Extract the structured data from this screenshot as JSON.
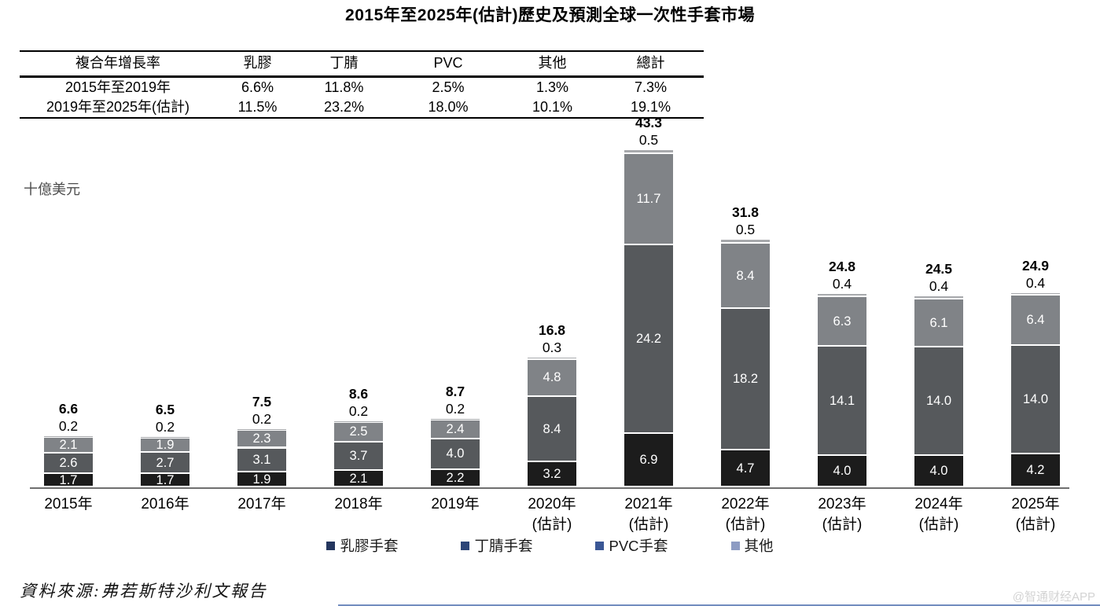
{
  "title": "2015年至2025年(估計)歷史及預測全球一次性手套市場",
  "unit_label": "十億美元",
  "cagr_table": {
    "headers": [
      "複合年增長率",
      "乳膠",
      "丁腈",
      "PVC",
      "其他",
      "總計"
    ],
    "rows": [
      {
        "label": "2015年至2019年",
        "values": [
          "6.6%",
          "11.8%",
          "2.5%",
          "1.3%",
          "7.3%"
        ]
      },
      {
        "label": "2019年至2025年(估計)",
        "values": [
          "11.5%",
          "23.2%",
          "18.0%",
          "10.1%",
          "19.1%"
        ]
      }
    ]
  },
  "chart_data": {
    "type": "bar",
    "stacked": true,
    "title": "2015年至2025年(估計)歷史及預測全球一次性手套市場",
    "ylabel": "十億美元",
    "grid": false,
    "legend_position": "bottom",
    "categories": [
      "2015年",
      "2016年",
      "2017年",
      "2018年",
      "2019年",
      "2020年(估計)",
      "2021年(估計)",
      "2022年(估計)",
      "2023年(估計)",
      "2024年(估計)",
      "2025年(估計)"
    ],
    "category_lines": [
      [
        "2015年"
      ],
      [
        "2016年"
      ],
      [
        "2017年"
      ],
      [
        "2018年"
      ],
      [
        "2019年"
      ],
      [
        "2020年",
        "(估計)"
      ],
      [
        "2021年",
        "(估計)"
      ],
      [
        "2022年",
        "(估計)"
      ],
      [
        "2023年",
        "(估計)"
      ],
      [
        "2024年",
        "(估計)"
      ],
      [
        "2025年",
        "(估計)"
      ]
    ],
    "series": [
      {
        "name": "乳膠手套",
        "bar_color": "#1c1c1c",
        "legend_color": "#24365e",
        "values": [
          1.7,
          1.7,
          1.9,
          2.1,
          2.2,
          3.2,
          6.9,
          4.7,
          4.0,
          4.0,
          4.2
        ]
      },
      {
        "name": "丁腈手套",
        "bar_color": "#56595c",
        "legend_color": "#2d4678",
        "values": [
          2.6,
          2.7,
          3.1,
          3.7,
          4.0,
          8.4,
          24.2,
          18.2,
          14.1,
          14.0,
          14.0
        ]
      },
      {
        "name": "PVC手套",
        "bar_color": "#808387",
        "legend_color": "#3a5795",
        "values": [
          2.1,
          1.9,
          2.3,
          2.5,
          2.4,
          4.8,
          11.7,
          8.4,
          6.3,
          6.1,
          6.4
        ]
      },
      {
        "name": "其他",
        "bar_color": "#a7a9ac",
        "legend_color": "#8d9cc3",
        "values": [
          0.2,
          0.2,
          0.2,
          0.2,
          0.2,
          0.3,
          0.5,
          0.5,
          0.4,
          0.4,
          0.4
        ]
      }
    ],
    "totals": [
      "6.6",
      "6.5",
      "7.5",
      "8.6",
      "8.7",
      "16.8",
      "43.3",
      "31.8",
      "24.8",
      "24.5",
      "24.9"
    ]
  },
  "source": "資料來源:弗若斯特沙利文報告",
  "watermark": "@智通财经APP"
}
